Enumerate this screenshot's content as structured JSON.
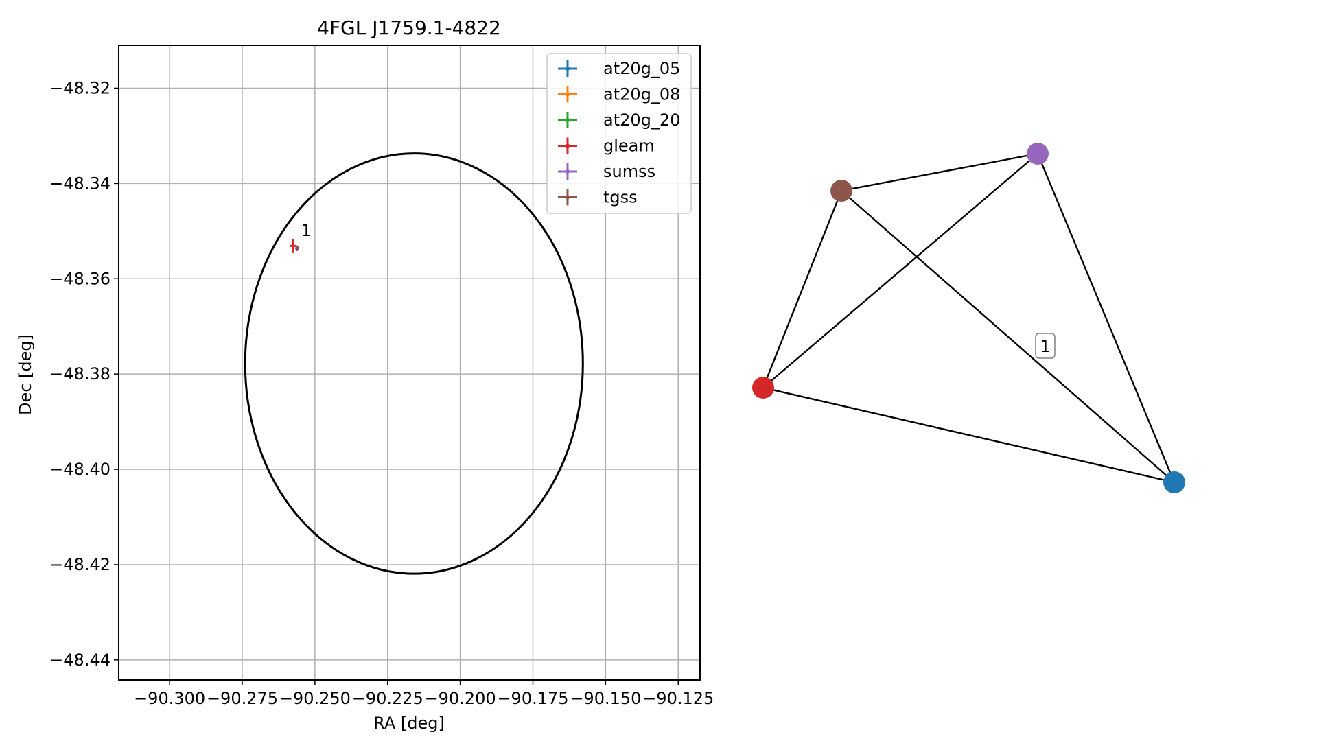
{
  "chart_data": [
    {
      "type": "scatter",
      "title": "4FGL J1759.1-4822",
      "xlabel": "RA [deg]",
      "ylabel": "Dec [deg]",
      "xlim": [
        -90.3175,
        -90.1175
      ],
      "ylim": [
        -48.4442,
        -48.311
      ],
      "xticks": [
        -90.3,
        -90.275,
        -90.25,
        -90.225,
        -90.2,
        -90.175,
        -90.15,
        -90.125
      ],
      "xtick_labels": [
        "−90.300",
        "−90.275",
        "−90.250",
        "−90.225",
        "−90.200",
        "−90.175",
        "−90.150",
        "−90.125"
      ],
      "yticks": [
        -48.32,
        -48.34,
        -48.36,
        -48.38,
        -48.4,
        -48.42,
        -48.44
      ],
      "ytick_labels": [
        "−48.32",
        "−48.34",
        "−48.36",
        "−48.38",
        "−48.40",
        "−48.42",
        "−48.44"
      ],
      "grid": true,
      "legend_position": "upper right",
      "ellipse": {
        "center": [
          -90.2159,
          -48.3778
        ],
        "ra_halfwidth": 0.0581,
        "dec_halfwidth": 0.0441
      },
      "series": [
        {
          "name": "at20g_05",
          "color": "#1f77b4",
          "points": []
        },
        {
          "name": "at20g_08",
          "color": "#ff7f0e",
          "points": []
        },
        {
          "name": "at20g_20",
          "color": "#2ca02c",
          "points": []
        },
        {
          "name": "gleam",
          "color": "#d62728",
          "points": [
            {
              "x": -90.2575,
              "y": -48.3531,
              "xerr": 0.0012,
              "yerr": 0.0015
            }
          ]
        },
        {
          "name": "sumss",
          "color": "#9467bd",
          "points": [
            {
              "x": -90.2562,
              "y": -48.3536,
              "xerr": 0.0006,
              "yerr": 0.0006
            }
          ]
        },
        {
          "name": "tgss",
          "color": "#8c564b",
          "points": [
            {
              "x": -90.256,
              "y": -48.3536,
              "xerr": 0.0004,
              "yerr": 0.0004
            }
          ]
        }
      ],
      "annotations": [
        {
          "text": "1",
          "x": -90.2548,
          "y": -48.351
        }
      ]
    },
    {
      "type": "network",
      "nodes": [
        {
          "id": "tgss",
          "color": "#8c564b"
        },
        {
          "id": "sumss",
          "color": "#9467bd"
        },
        {
          "id": "gleam",
          "color": "#d62728"
        },
        {
          "id": "at20g",
          "color": "#1f77b4"
        }
      ],
      "edges": [
        [
          "tgss",
          "sumss"
        ],
        [
          "tgss",
          "gleam"
        ],
        [
          "tgss",
          "at20g"
        ],
        [
          "sumss",
          "gleam"
        ],
        [
          "sumss",
          "at20g"
        ],
        [
          "gleam",
          "at20g"
        ]
      ],
      "annotations": [
        {
          "text": "1"
        }
      ]
    }
  ]
}
